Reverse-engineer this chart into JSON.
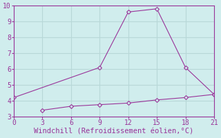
{
  "line1_x": [
    0,
    9,
    12,
    15,
    18,
    21
  ],
  "line1_y": [
    4.2,
    6.1,
    9.6,
    9.8,
    6.1,
    4.4
  ],
  "line2_x": [
    3,
    6,
    9,
    12,
    15,
    18,
    21
  ],
  "line2_y": [
    3.4,
    3.65,
    3.75,
    3.85,
    4.05,
    4.2,
    4.4
  ],
  "line_color": "#993399",
  "xlabel": "Windchill (Refroidissement éolien,°C)",
  "xlim": [
    0,
    21
  ],
  "ylim": [
    3,
    10
  ],
  "xticks": [
    0,
    3,
    6,
    9,
    12,
    15,
    18,
    21
  ],
  "yticks": [
    3,
    4,
    5,
    6,
    7,
    8,
    9,
    10
  ],
  "background_color": "#d0eded",
  "grid_color": "#b8d8d8",
  "marker": "D",
  "marker_size": 3,
  "xlabel_color": "#993399",
  "tick_color": "#993399",
  "xlabel_fontsize": 7.5,
  "tick_fontsize": 7
}
